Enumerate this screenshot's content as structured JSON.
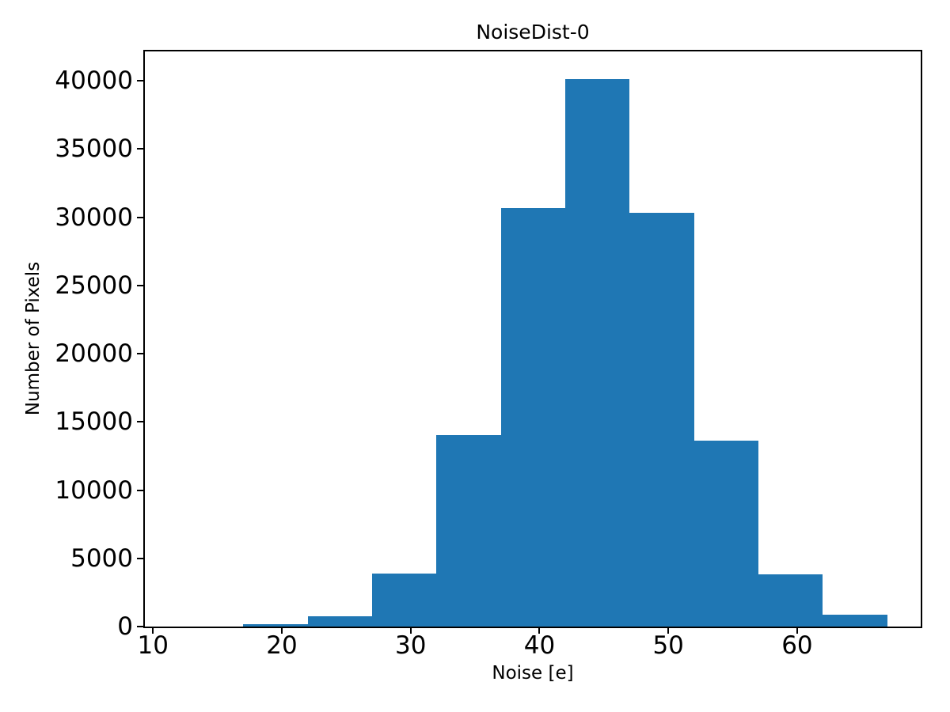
{
  "figure": {
    "background": "#ffffff",
    "text_color": "#000000"
  },
  "chart_data": {
    "type": "bar",
    "subtype": "histogram",
    "title": "NoiseDist-0",
    "xlabel": "Noise [e]",
    "ylabel": "Number of Pixels",
    "bin_edges": [
      17,
      22,
      27,
      32,
      37,
      42,
      47,
      52,
      57,
      62,
      67
    ],
    "values": [
      170,
      750,
      3880,
      14030,
      30650,
      40100,
      30300,
      13600,
      3830,
      870
    ],
    "bar_color": "#1f77b4",
    "axis_color": "#000000",
    "xticks": [
      10,
      20,
      30,
      40,
      50,
      60
    ],
    "yticks": [
      0,
      5000,
      10000,
      15000,
      20000,
      25000,
      30000,
      35000,
      40000
    ],
    "xlim": [
      9.37,
      69.59
    ],
    "ylim": [
      0,
      42145
    ],
    "grid": false,
    "legend": null
  }
}
